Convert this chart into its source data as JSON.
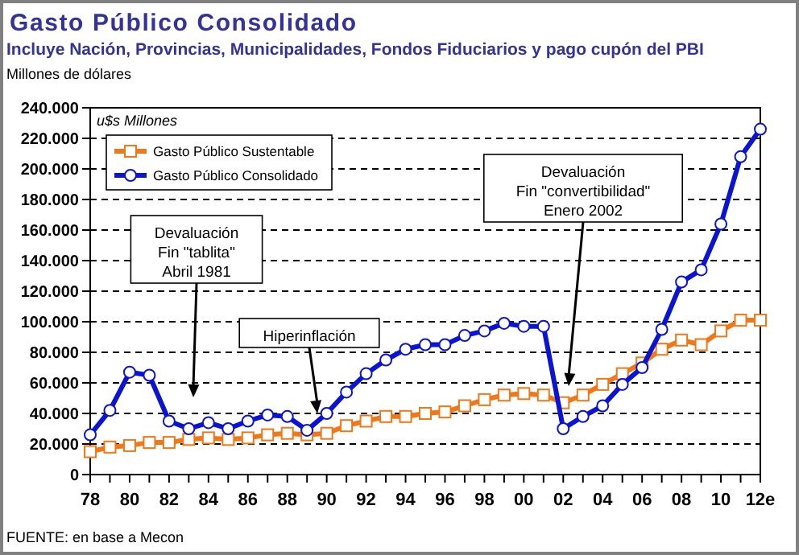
{
  "chart_data": {
    "type": "line",
    "title": "Gasto Público Consolidado",
    "subtitle": "Incluye Nación, Provincias, Municipalidades, Fondos Fiduciarios y pago cupón del PBI",
    "ylabel": "u$s Millones",
    "categories": [
      "78",
      null,
      "80",
      null,
      "82",
      null,
      "84",
      null,
      "86",
      null,
      "88",
      null,
      "90",
      null,
      "92",
      null,
      "94",
      null,
      "96",
      null,
      "98",
      null,
      "00",
      null,
      "02",
      null,
      "04",
      null,
      "06",
      null,
      "08",
      null,
      "10",
      null,
      "12e"
    ],
    "series": [
      {
        "name": "Gasto Público Sustentable",
        "color": "#f07818",
        "marker": "square",
        "values": [
          15000,
          18000,
          19000,
          21000,
          21000,
          23000,
          24000,
          23000,
          24000,
          26000,
          27000,
          26000,
          27000,
          32000,
          35000,
          38000,
          38000,
          40000,
          41000,
          45000,
          49000,
          52000,
          53000,
          52000,
          47000,
          52000,
          59000,
          66000,
          73000,
          82000,
          88000,
          85000,
          94000,
          101000,
          101000
        ]
      },
      {
        "name": "Gasto Público Consolidado",
        "color": "#0a14d2",
        "marker": "circle",
        "values": [
          26000,
          42000,
          67000,
          65000,
          35000,
          30000,
          34000,
          30000,
          35000,
          39000,
          38000,
          29000,
          40000,
          54000,
          66000,
          75000,
          82000,
          85000,
          85000,
          91000,
          94000,
          99000,
          97000,
          97000,
          30000,
          38000,
          45000,
          59000,
          70000,
          95000,
          126000,
          134000,
          164000,
          208000,
          226000
        ]
      }
    ],
    "ylim": [
      0,
      240000
    ],
    "yticks": [
      0,
      {
        "value": 20000,
        "label": "20.000"
      },
      {
        "value": 40000,
        "label": "40.000"
      },
      {
        "value": 60000,
        "label": "60.000"
      },
      {
        "value": 80000,
        "label": "80.000"
      },
      {
        "value": 100000,
        "label": "100.000"
      },
      {
        "value": 120000,
        "label": "120.000"
      },
      {
        "value": 140000,
        "label": "140.000"
      },
      {
        "value": 160000,
        "label": "160.000"
      },
      {
        "value": 180000,
        "label": "180.000"
      },
      {
        "value": 200000,
        "label": "200.000"
      },
      {
        "value": 220000,
        "label": "220.000"
      },
      {
        "value": 240000,
        "label": "240.000"
      }
    ],
    "grid": "y",
    "legend": "top left",
    "line_style": "solid",
    "annotations": [
      "Millones de dólares",
      "Devaluación\nFin \"tablita\"\nAbril 1981",
      "Hiperinflación",
      "Devaluación\nFin \"convertibilidad\"\nEnero 2002",
      "FUENTE: en base a Mecon"
    ]
  }
}
